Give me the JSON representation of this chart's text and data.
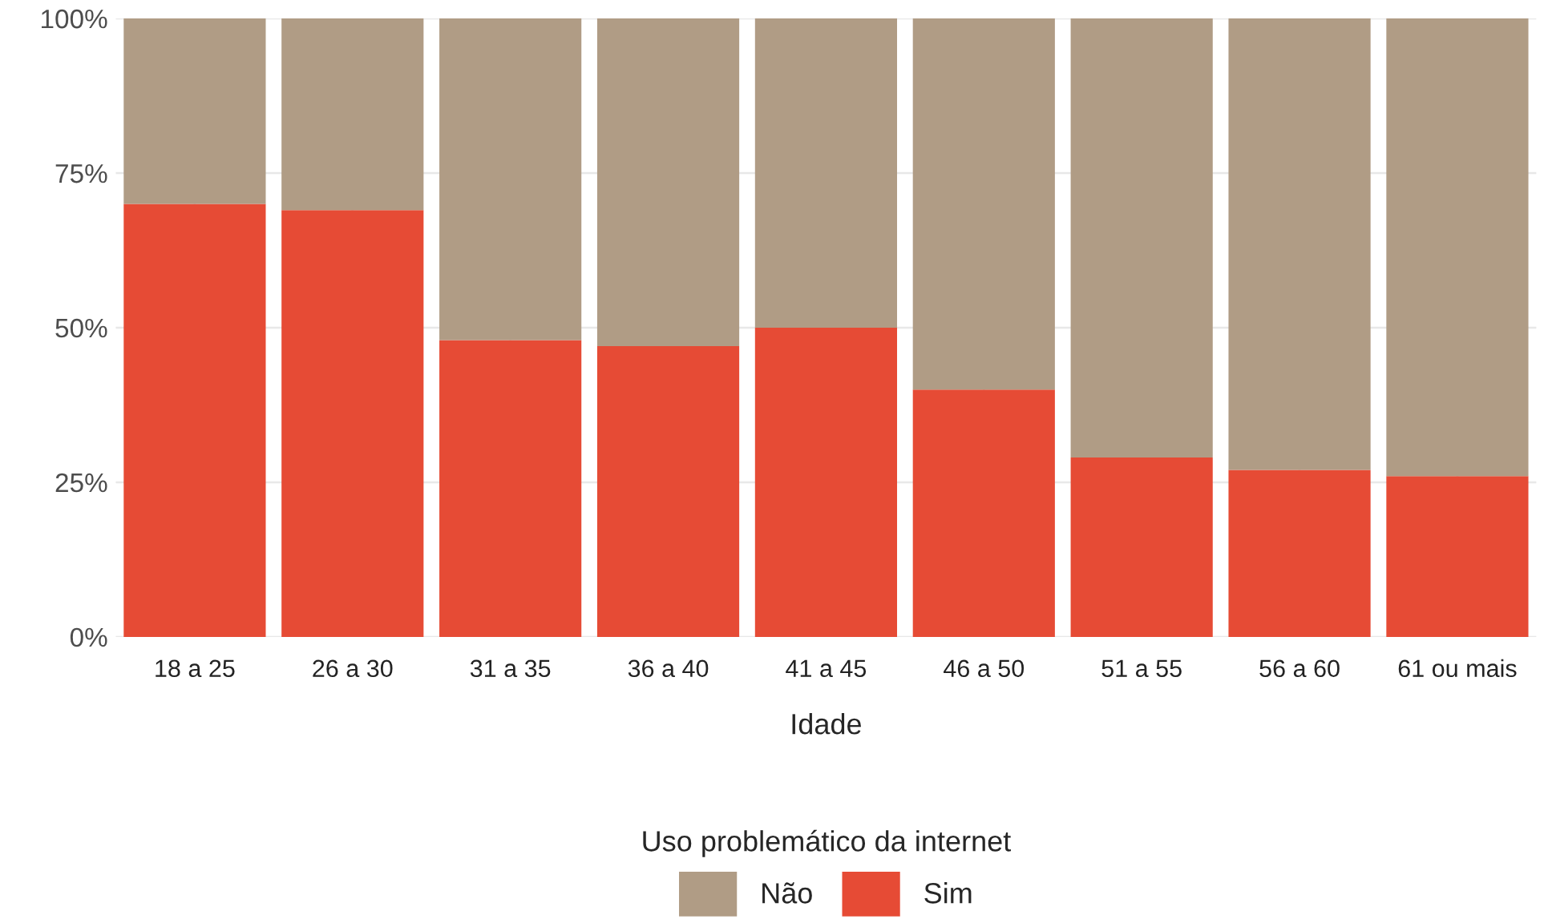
{
  "chart_data": {
    "type": "bar",
    "stacked": true,
    "xlabel": "Idade",
    "legend_title": "Uso problemático da internet",
    "categories": [
      "18 a 25",
      "26 a 30",
      "31 a 35",
      "36 a 40",
      "41 a 45",
      "46 a 50",
      "51 a 55",
      "56 a 60",
      "61 ou mais"
    ],
    "series": [
      {
        "name": "Sim",
        "color": "#e64b35",
        "values": [
          70,
          69,
          48,
          47,
          50,
          40,
          29,
          27,
          26
        ]
      },
      {
        "name": "Não",
        "color": "#b09c85",
        "values": [
          30,
          31,
          52,
          53,
          50,
          60,
          71,
          73,
          74
        ]
      }
    ],
    "ylim": [
      0,
      100
    ],
    "yticks": [
      {
        "value": 0,
        "label": "0%"
      },
      {
        "value": 25,
        "label": "25%"
      },
      {
        "value": 50,
        "label": "50%"
      },
      {
        "value": 75,
        "label": "75%"
      },
      {
        "value": 100,
        "label": "100%"
      }
    ],
    "grid": true,
    "legend": "bottom"
  }
}
